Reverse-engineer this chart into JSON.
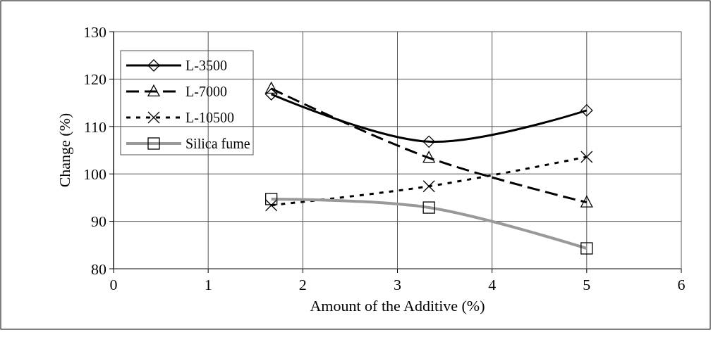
{
  "chart_data": {
    "type": "line",
    "xlabel": "Amount of the Additive (%)",
    "ylabel": "Change (%)",
    "x": [
      1.667,
      3.333,
      5
    ],
    "xlim": [
      0,
      6
    ],
    "xticks": [
      0,
      1,
      2,
      3,
      4,
      5,
      6
    ],
    "ylim": [
      80,
      130
    ],
    "yticks": [
      80,
      90,
      100,
      110,
      120,
      130
    ],
    "grid": true,
    "legend": "top left",
    "series": [
      {
        "name": "L-3500",
        "color": "#000000",
        "marker": "diamond",
        "line_style": "solid",
        "values": [
          116.8,
          106.8,
          113.4
        ]
      },
      {
        "name": "L-7000",
        "color": "#000000",
        "marker": "triangle",
        "line_style": "dashed",
        "values": [
          118.0,
          103.4,
          94.0
        ]
      },
      {
        "name": "L-10500",
        "color": "#000000",
        "marker": "cross",
        "line_style": "dotted",
        "values": [
          93.4,
          97.4,
          103.6
        ]
      },
      {
        "name": "Silica fume",
        "color": "#999999",
        "marker": "square",
        "line_style": "solid",
        "values": [
          94.7,
          92.9,
          84.3
        ]
      }
    ]
  }
}
